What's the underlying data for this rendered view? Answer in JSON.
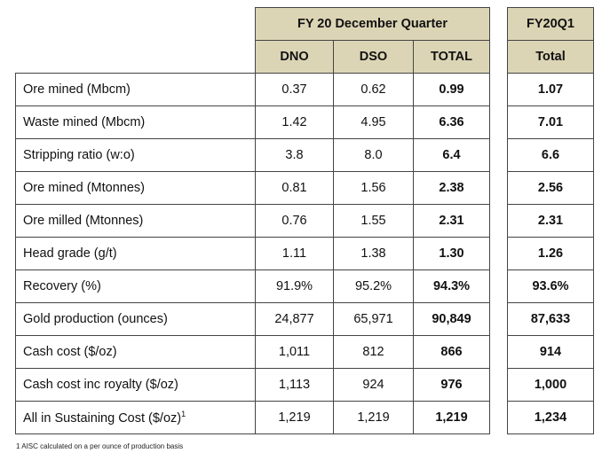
{
  "header": {
    "group_title": "FY 20 December Quarter",
    "columns": [
      "DNO",
      "DSO",
      "TOTAL"
    ],
    "right_title": "FY20Q1",
    "right_column": "Total"
  },
  "rows": [
    {
      "label": "Ore mined (Mbcm)",
      "dno": "0.37",
      "dso": "0.62",
      "total": "0.99",
      "q1": "1.07"
    },
    {
      "label": "Waste mined (Mbcm)",
      "dno": "1.42",
      "dso": "4.95",
      "total": "6.36",
      "q1": "7.01"
    },
    {
      "label": "Stripping ratio (w:o)",
      "dno": "3.8",
      "dso": "8.0",
      "total": "6.4",
      "q1": "6.6"
    },
    {
      "label": "Ore mined (Mtonnes)",
      "dno": "0.81",
      "dso": "1.56",
      "total": "2.38",
      "q1": "2.56"
    },
    {
      "label": "Ore milled (Mtonnes)",
      "dno": "0.76",
      "dso": "1.55",
      "total": "2.31",
      "q1": "2.31"
    },
    {
      "label": "Head grade (g/t)",
      "dno": "1.11",
      "dso": "1.38",
      "total": "1.30",
      "q1": "1.26"
    },
    {
      "label": "Recovery (%)",
      "dno": "91.9%",
      "dso": "95.2%",
      "total": "94.3%",
      "q1": "93.6%"
    },
    {
      "label": "Gold production (ounces)",
      "dno": "24,877",
      "dso": "65,971",
      "total": "90,849",
      "q1": "87,633"
    },
    {
      "label": "Cash cost ($/oz)",
      "dno": "1,011",
      "dso": "812",
      "total": "866",
      "q1": "914"
    },
    {
      "label": "Cash cost inc royalty ($/oz)",
      "dno": "1,113",
      "dso": "924",
      "total": "976",
      "q1": "1,000"
    },
    {
      "label": "All in Sustaining Cost ($/oz)",
      "label_sup": "1",
      "dno": "1,219",
      "dso": "1,219",
      "total": "1,219",
      "q1": "1,234"
    }
  ],
  "footnote": "1 AISC calculated on a per ounce of production basis"
}
